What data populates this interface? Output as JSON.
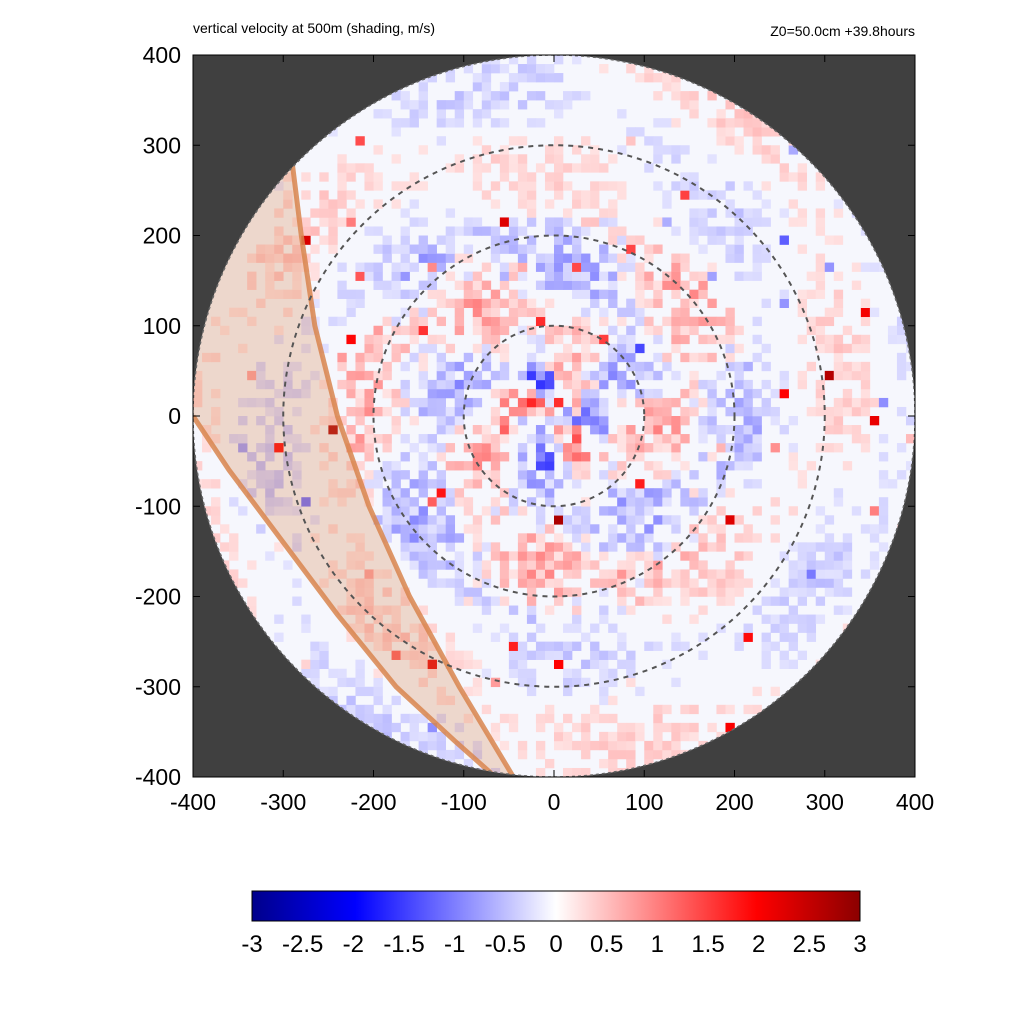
{
  "chart_data": {
    "type": "heatmap",
    "title": "vertical velocity at 500m (shading, m/s)",
    "subtitle": "Z0=50.0cm  +39.8hours",
    "xlim": [
      -400,
      400
    ],
    "ylim": [
      -400,
      400
    ],
    "x_ticks": [
      -400,
      -300,
      -200,
      -100,
      0,
      100,
      200,
      300,
      400
    ],
    "y_ticks": [
      -400,
      -300,
      -200,
      -100,
      0,
      100,
      200,
      300,
      400
    ],
    "x_tick_labels": [
      "-400",
      "-300",
      "-200",
      "-100",
      "0",
      "100",
      "200",
      "300",
      "400"
    ],
    "y_tick_labels": [
      "-400",
      "-300",
      "-200",
      "-100",
      "0",
      "100",
      "200",
      "300",
      "400"
    ],
    "domain_radius": 400,
    "range_rings": [
      100,
      200,
      300
    ],
    "outside_domain_color": "#404040",
    "colorbar": {
      "min": -3,
      "max": 3,
      "ticks": [
        -3,
        -2.5,
        -2,
        -1.5,
        -1,
        -0.5,
        0,
        0.5,
        1,
        1.5,
        2,
        2.5,
        3
      ],
      "tick_labels": [
        "-3",
        "-2.5",
        "-2",
        "-1.5",
        "-1",
        "-0.5",
        "0",
        "0.5",
        "1",
        "1.5",
        "2",
        "2.5",
        "3"
      ],
      "colors": [
        "#00008b",
        "#0000ff",
        "#ffffff",
        "#ff0000",
        "#8b0000"
      ]
    },
    "swath_band": {
      "color": "#d8854e",
      "outer_edge": [
        [
          -290,
          280
        ],
        [
          -280,
          200
        ],
        [
          -265,
          100
        ],
        [
          -240,
          0
        ],
        [
          -205,
          -100
        ],
        [
          -160,
          -200
        ],
        [
          -105,
          -300
        ],
        [
          -45,
          -400
        ]
      ],
      "inner_edge": [
        [
          -400,
          0
        ],
        [
          -360,
          -60
        ],
        [
          -300,
          -140
        ],
        [
          -240,
          -220
        ],
        [
          -175,
          -300
        ],
        [
          -110,
          -360
        ],
        [
          -65,
          -400
        ]
      ],
      "left_boundary_top": [
        -400,
        305
      ]
    }
  }
}
